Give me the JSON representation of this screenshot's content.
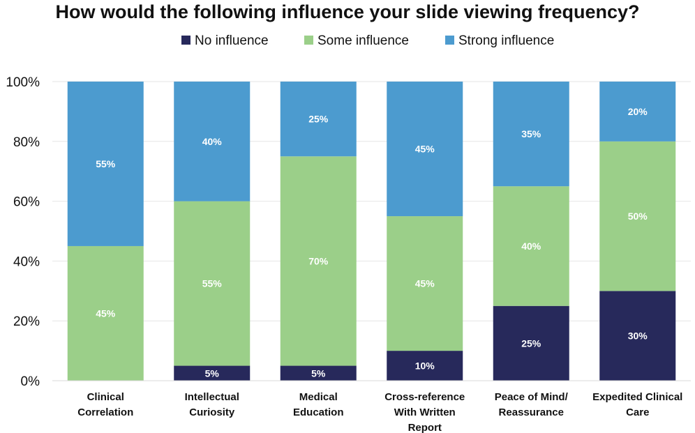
{
  "chart_data": {
    "type": "bar",
    "stacked": true,
    "title": "How would the following influence your slide viewing frequency?",
    "categories": [
      [
        "Clinical",
        "Correlation"
      ],
      [
        "Intellectual",
        "Curiosity"
      ],
      [
        "Medical",
        "Education"
      ],
      [
        "Cross-reference",
        "With Written",
        "Report"
      ],
      [
        "Peace of Mind/",
        "Reassurance"
      ],
      [
        "Expedited Clinical",
        "Care"
      ]
    ],
    "series": [
      {
        "name": "No influence",
        "color": "#27295b",
        "values": [
          0,
          5,
          5,
          10,
          25,
          30
        ],
        "labels": [
          "",
          "5%",
          "5%",
          "10%",
          "25%",
          "30%"
        ]
      },
      {
        "name": "Some influence",
        "color": "#9bcf89",
        "values": [
          45,
          55,
          70,
          45,
          40,
          50
        ],
        "labels": [
          "45%",
          "55%",
          "70%",
          "45%",
          "40%",
          "50%"
        ]
      },
      {
        "name": "Strong influence",
        "color": "#4c9bcf",
        "values": [
          55,
          40,
          25,
          45,
          35,
          20
        ],
        "labels": [
          "55%",
          "40%",
          "25%",
          "45%",
          "35%",
          "20%"
        ]
      }
    ],
    "ylim": [
      0,
      100
    ],
    "yticks": [
      0,
      20,
      40,
      60,
      80,
      100
    ],
    "ytick_labels": [
      "0%",
      "20%",
      "40%",
      "60%",
      "80%",
      "100%"
    ],
    "xlabel": "",
    "ylabel": "",
    "legend": "top-center",
    "grid": true
  }
}
